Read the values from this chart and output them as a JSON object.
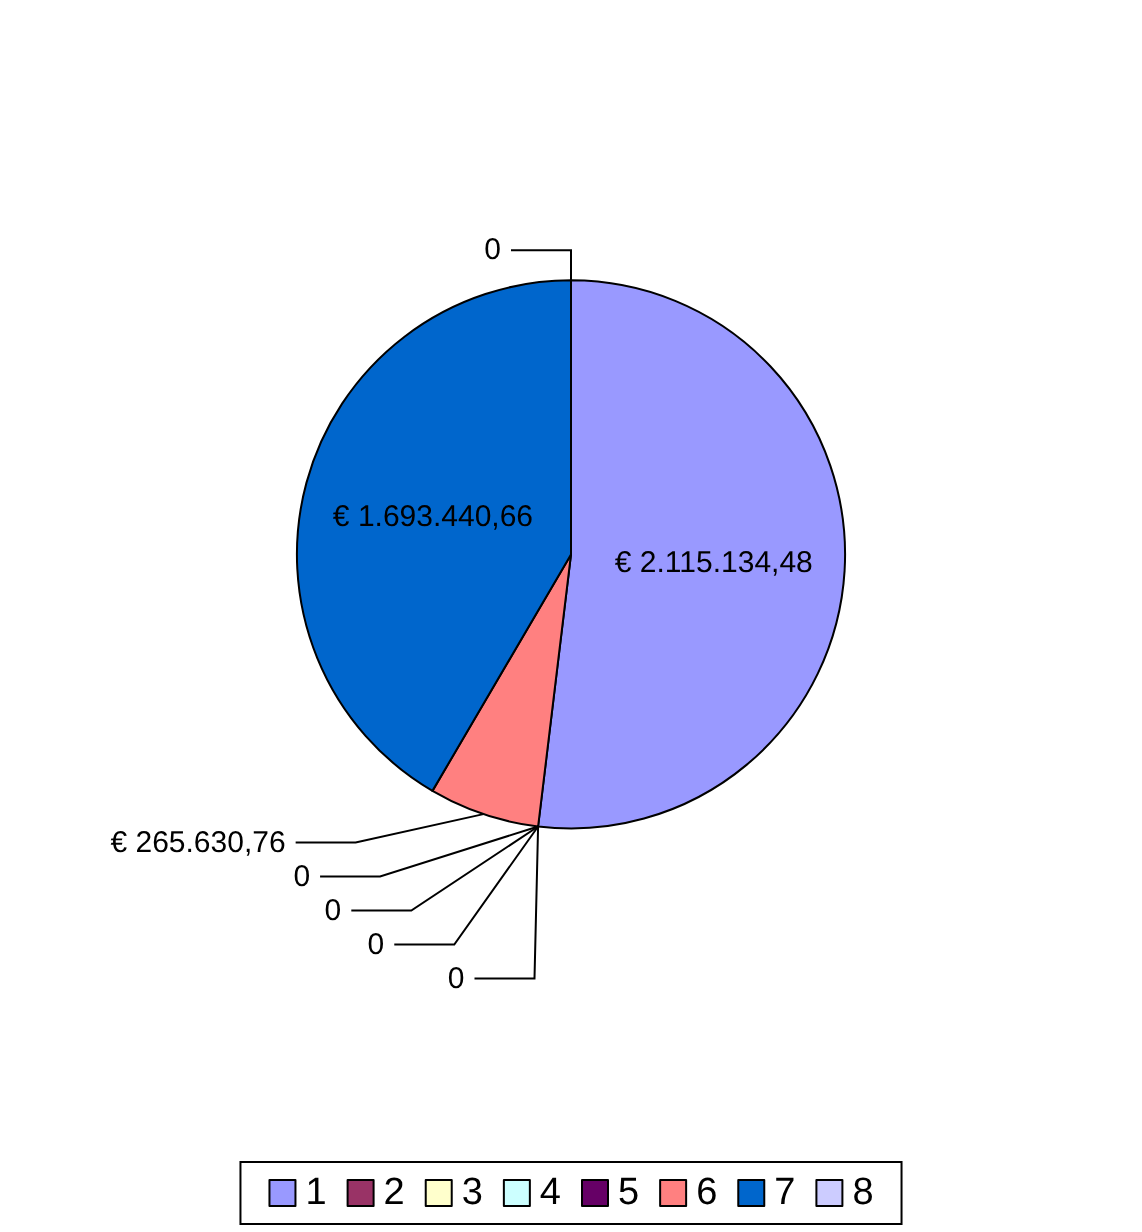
{
  "chart_data": {
    "type": "pie",
    "categories": [
      "1",
      "2",
      "3",
      "4",
      "5",
      "6",
      "7",
      "8"
    ],
    "values": [
      2115134.48,
      0,
      0,
      0,
      0,
      265630.76,
      1693440.66,
      0
    ],
    "value_labels": [
      "€ 2.115.134,48",
      "0",
      "0",
      "0",
      "0",
      "€ 265.630,76",
      "€ 1.693.440,66",
      "0"
    ],
    "colors": [
      "#9999ff",
      "#993366",
      "#ffffcc",
      "#ccffff",
      "#660066",
      "#ff8080",
      "#0066cc",
      "#ccccff"
    ],
    "legend": "bottom"
  }
}
